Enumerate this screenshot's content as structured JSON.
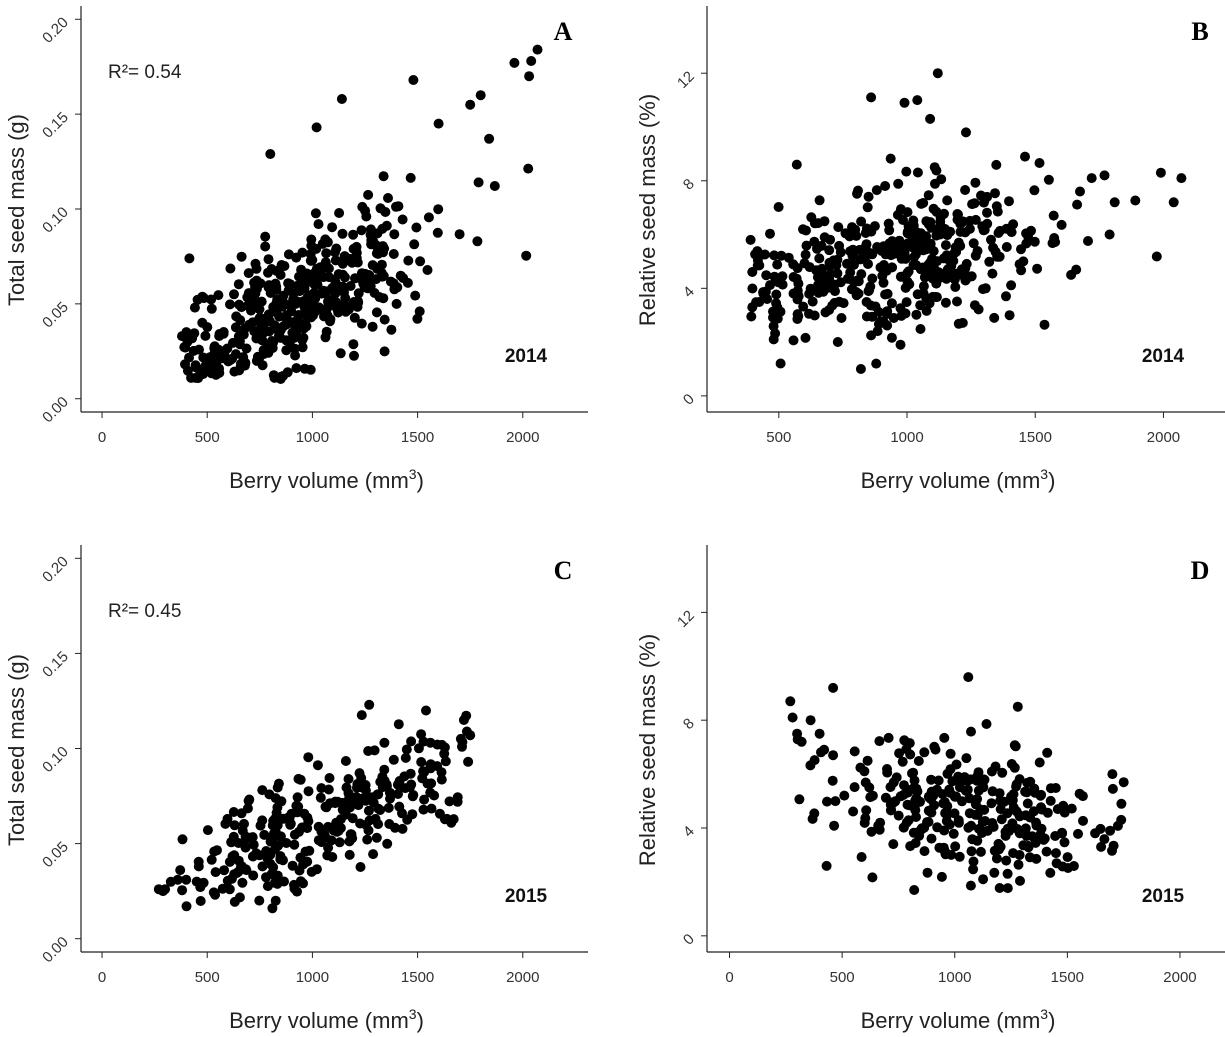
{
  "figure": {
    "background": "#ffffff",
    "point_color": "#000000"
  },
  "chart_data": [
    {
      "id": "A",
      "type": "scatter",
      "panel_label": "A",
      "year_label": "2014",
      "annotation": "R²= 0.54",
      "xlabel": "Berry volume (mm",
      "xlabel_sup": "3",
      "xlabel_end": ")",
      "ylabel": "Total seed mass (g)",
      "xlim": [
        -100,
        2310
      ],
      "ylim": [
        -0.007,
        0.207
      ],
      "xticks": [
        0,
        500,
        1000,
        1500,
        2000
      ],
      "xtick_labels": [
        "0",
        "500",
        "1000",
        "1500",
        "2000"
      ],
      "yticks": [
        0,
        0.05,
        0.1,
        0.15,
        0.2
      ],
      "ytick_labels": [
        "0.00",
        "0.05",
        "0.10",
        "0.15",
        "0.20"
      ],
      "ytick_rotate": true,
      "grid": false,
      "gen": {
        "n": 420,
        "xmin": 380,
        "xmax": 2070,
        "xcenter": 950,
        "xspread": 300,
        "slope": 5.2e-05,
        "intercept": 0.003,
        "noise": 0.017,
        "ymin": 0.01,
        "ymax": 0.185,
        "seed": 11
      },
      "extra_points": [
        {
          "x": 380,
          "y": 0.033
        },
        {
          "x": 480,
          "y": 0.013
        },
        {
          "x": 820,
          "y": 0.011
        },
        {
          "x": 860,
          "y": 0.012
        },
        {
          "x": 1140,
          "y": 0.158
        },
        {
          "x": 1480,
          "y": 0.168
        },
        {
          "x": 1750,
          "y": 0.155
        },
        {
          "x": 1800,
          "y": 0.16
        },
        {
          "x": 1960,
          "y": 0.177
        },
        {
          "x": 2030,
          "y": 0.17
        },
        {
          "x": 2070,
          "y": 0.184
        },
        {
          "x": 2040,
          "y": 0.178
        },
        {
          "x": 1840,
          "y": 0.137
        },
        {
          "x": 1790,
          "y": 0.114
        },
        {
          "x": 1510,
          "y": 0.046
        },
        {
          "x": 1400,
          "y": 0.05
        },
        {
          "x": 800,
          "y": 0.129
        },
        {
          "x": 1020,
          "y": 0.143
        },
        {
          "x": 1600,
          "y": 0.145
        }
      ]
    },
    {
      "id": "B",
      "type": "scatter",
      "panel_label": "B",
      "year_label": "2014",
      "annotation": "",
      "xlabel": "Berry volume (mm",
      "xlabel_sup": "3",
      "xlabel_end": ")",
      "ylabel": "Relative seed mass (%)",
      "xlim": [
        220,
        2240
      ],
      "ylim": [
        -0.6,
        14.5
      ],
      "xticks": [
        500,
        1000,
        1500,
        2000
      ],
      "xtick_labels": [
        "500",
        "1000",
        "1500",
        "2000"
      ],
      "yticks": [
        0,
        4,
        8,
        12
      ],
      "ytick_labels": [
        "0",
        "4",
        "8",
        "12"
      ],
      "ytick_rotate": true,
      "grid": false,
      "gen": {
        "n": 420,
        "xmin": 390,
        "xmax": 2070,
        "xcenter": 950,
        "xspread": 300,
        "slope": 0.0019,
        "intercept": 3.2,
        "noise": 1.25,
        "ymin": 1.0,
        "ymax": 12.0,
        "seed": 23
      },
      "extra_points": [
        {
          "x": 390,
          "y": 5.8
        },
        {
          "x": 440,
          "y": 3.8
        },
        {
          "x": 480,
          "y": 2.1
        },
        {
          "x": 820,
          "y": 1.0
        },
        {
          "x": 880,
          "y": 1.2
        },
        {
          "x": 1120,
          "y": 12.0
        },
        {
          "x": 860,
          "y": 11.1
        },
        {
          "x": 990,
          "y": 10.9
        },
        {
          "x": 1040,
          "y": 11.0
        },
        {
          "x": 1090,
          "y": 10.3
        },
        {
          "x": 1230,
          "y": 9.8
        },
        {
          "x": 1460,
          "y": 8.9
        },
        {
          "x": 1720,
          "y": 8.1
        },
        {
          "x": 1770,
          "y": 8.2
        },
        {
          "x": 1810,
          "y": 7.2
        },
        {
          "x": 1790,
          "y": 6.0
        },
        {
          "x": 1990,
          "y": 8.3
        },
        {
          "x": 2040,
          "y": 7.2
        },
        {
          "x": 2070,
          "y": 8.1
        },
        {
          "x": 570,
          "y": 8.6
        },
        {
          "x": 1640,
          "y": 4.5
        },
        {
          "x": 1400,
          "y": 3.0
        },
        {
          "x": 1340,
          "y": 2.9
        }
      ]
    },
    {
      "id": "C",
      "type": "scatter",
      "panel_label": "C",
      "year_label": "2015",
      "annotation": "R²= 0.45",
      "xlabel": "Berry volume (mm",
      "xlabel_sup": "3",
      "xlabel_end": ")",
      "ylabel": "Total seed mass (g)",
      "xlim": [
        -100,
        2310
      ],
      "ylim": [
        -0.007,
        0.207
      ],
      "xticks": [
        0,
        500,
        1000,
        1500,
        2000
      ],
      "xtick_labels": [
        "0",
        "500",
        "1000",
        "1500",
        "2000"
      ],
      "yticks": [
        0,
        0.05,
        0.1,
        0.15,
        0.2
      ],
      "ytick_labels": [
        "0.00",
        "0.05",
        "0.10",
        "0.15",
        "0.20"
      ],
      "ytick_rotate": true,
      "grid": false,
      "gen": {
        "n": 300,
        "xmin": 270,
        "xmax": 1750,
        "xcenter": 1050,
        "xspread": 320,
        "slope": 5.2e-05,
        "intercept": 0.008,
        "noise": 0.015,
        "ymin": 0.016,
        "ymax": 0.123,
        "seed": 37
      },
      "extra_points": [
        {
          "x": 270,
          "y": 0.026
        },
        {
          "x": 290,
          "y": 0.025
        },
        {
          "x": 300,
          "y": 0.026
        },
        {
          "x": 360,
          "y": 0.031
        },
        {
          "x": 400,
          "y": 0.031
        },
        {
          "x": 450,
          "y": 0.03
        },
        {
          "x": 470,
          "y": 0.029
        },
        {
          "x": 460,
          "y": 0.038
        },
        {
          "x": 540,
          "y": 0.035
        },
        {
          "x": 580,
          "y": 0.036
        },
        {
          "x": 810,
          "y": 0.016
        },
        {
          "x": 1270,
          "y": 0.123
        },
        {
          "x": 1540,
          "y": 0.12
        },
        {
          "x": 1720,
          "y": 0.115
        },
        {
          "x": 1750,
          "y": 0.107
        },
        {
          "x": 1740,
          "y": 0.093
        },
        {
          "x": 1640,
          "y": 0.063
        },
        {
          "x": 1660,
          "y": 0.061
        },
        {
          "x": 1690,
          "y": 0.072
        },
        {
          "x": 1120,
          "y": 0.072
        }
      ]
    },
    {
      "id": "D",
      "type": "scatter",
      "panel_label": "D",
      "year_label": "2015",
      "annotation": "",
      "xlabel": "Berry volume (mm",
      "xlabel_sup": "3",
      "xlabel_end": ")",
      "ylabel": "Relative seed mass (%)",
      "xlim": [
        -100,
        2200
      ],
      "ylim": [
        -0.6,
        14.5
      ],
      "xticks": [
        0,
        500,
        1000,
        1500,
        2000
      ],
      "xtick_labels": [
        "0",
        "500",
        "1000",
        "1500",
        "2000"
      ],
      "yticks": [
        0,
        4,
        8,
        12
      ],
      "ytick_labels": [
        "0",
        "4",
        "8",
        "12"
      ],
      "ytick_rotate": true,
      "grid": false,
      "gen": {
        "n": 300,
        "xmin": 270,
        "xmax": 1750,
        "xcenter": 1050,
        "xspread": 320,
        "slope": -0.0009,
        "intercept": 5.6,
        "noise": 1.2,
        "ymin": 1.7,
        "ymax": 9.6,
        "seed": 53
      },
      "extra_points": [
        {
          "x": 270,
          "y": 8.7
        },
        {
          "x": 280,
          "y": 8.1
        },
        {
          "x": 300,
          "y": 7.5
        },
        {
          "x": 320,
          "y": 7.2
        },
        {
          "x": 360,
          "y": 8.0
        },
        {
          "x": 400,
          "y": 7.5
        },
        {
          "x": 420,
          "y": 6.9
        },
        {
          "x": 460,
          "y": 9.2
        },
        {
          "x": 470,
          "y": 5.0
        },
        {
          "x": 460,
          "y": 6.7
        },
        {
          "x": 1060,
          "y": 9.6
        },
        {
          "x": 820,
          "y": 1.7
        },
        {
          "x": 1280,
          "y": 8.5
        },
        {
          "x": 1700,
          "y": 6.0
        },
        {
          "x": 1750,
          "y": 5.7
        },
        {
          "x": 1740,
          "y": 4.9
        },
        {
          "x": 1650,
          "y": 3.3
        },
        {
          "x": 1690,
          "y": 3.9
        }
      ]
    }
  ]
}
